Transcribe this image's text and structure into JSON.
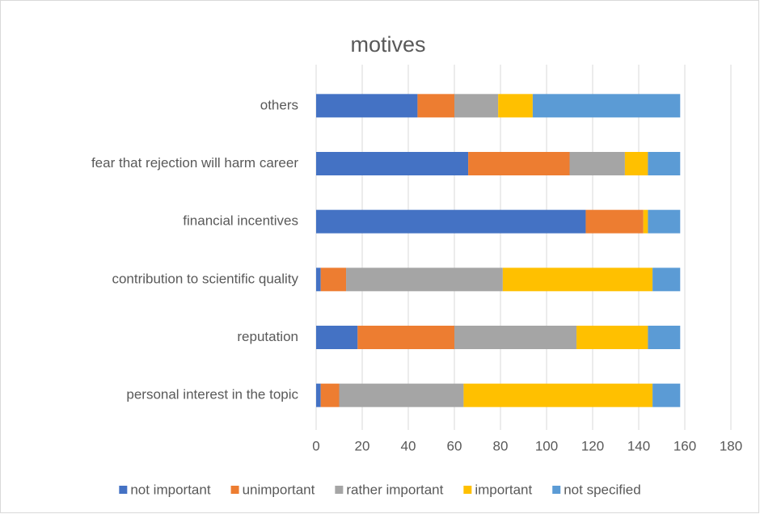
{
  "chart_data": {
    "type": "stacked_barh",
    "title": "motives",
    "categories": [
      "personal interest in the topic",
      "reputation",
      "contribution to scientific quality",
      "financial incentives",
      "fear that rejection will harm career",
      "others"
    ],
    "series": [
      {
        "name": "not important",
        "color": "#4472c4",
        "values": [
          2,
          18,
          2,
          117,
          66,
          44
        ]
      },
      {
        "name": "unimportant",
        "color": "#ed7d31",
        "values": [
          8,
          42,
          11,
          25,
          44,
          16
        ]
      },
      {
        "name": "rather important",
        "color": "#a5a5a5",
        "values": [
          54,
          53,
          68,
          0,
          24,
          19
        ]
      },
      {
        "name": "important",
        "color": "#ffc000",
        "values": [
          82,
          31,
          65,
          2,
          10,
          15
        ]
      },
      {
        "name": "not specified",
        "color": "#5b9bd5",
        "values": [
          12,
          14,
          12,
          14,
          14,
          64
        ]
      }
    ],
    "xlim": [
      0,
      180
    ],
    "xticks": [
      0,
      20,
      40,
      60,
      80,
      100,
      120,
      140,
      160,
      180
    ],
    "grid": true,
    "legend": "bottom"
  }
}
